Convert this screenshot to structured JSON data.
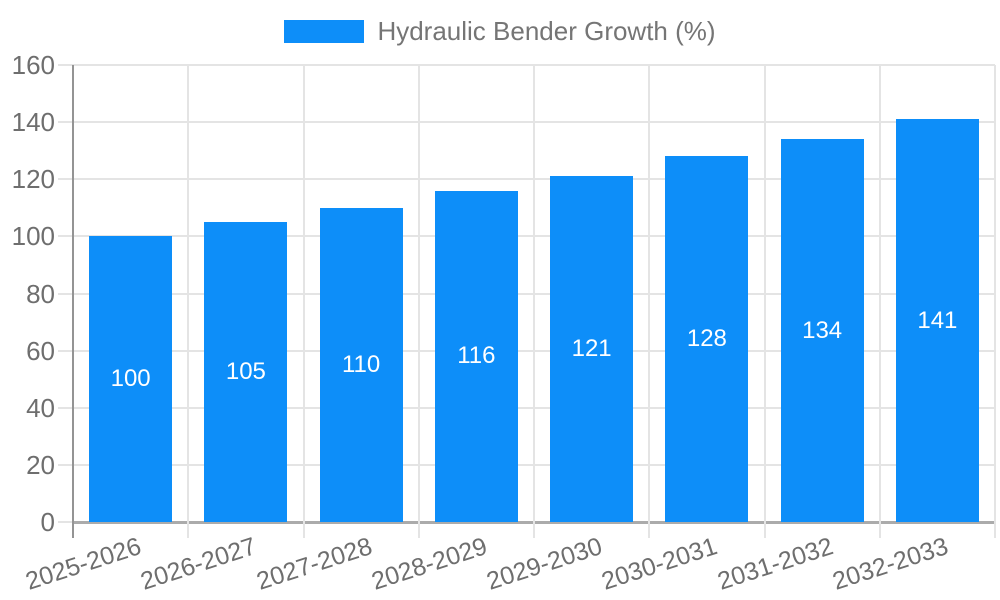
{
  "legend": {
    "label": "Hydraulic Bender Growth (%)"
  },
  "chart_data": {
    "type": "bar",
    "title": "Hydraulic Bender Growth (%)",
    "categories": [
      "2025-2026",
      "2026-2027",
      "2027-2028",
      "2028-2029",
      "2029-2030",
      "2030-2031",
      "2031-2032",
      "2032-2033"
    ],
    "values": [
      100,
      105,
      110,
      116,
      121,
      128,
      134,
      141
    ],
    "bar_labels": [
      "100",
      "105",
      "110",
      "116",
      "121",
      "128",
      "134",
      "141"
    ],
    "yticks": [
      0,
      20,
      40,
      60,
      80,
      100,
      120,
      140,
      160
    ],
    "ylim": [
      0,
      160
    ],
    "xlabel": "",
    "ylabel": "",
    "grid": true,
    "legend_position": "top-center",
    "bar_label_position": "inside-middle",
    "x_label_rotation_deg": -18,
    "colors": {
      "bar": "#0d8ef9",
      "bar_label": "#ffffff",
      "grid": "#e4e4e4",
      "axis_line": "#949494",
      "baseline": "#ababab",
      "tick_label": "#6e6e6e",
      "legend_text": "#757575",
      "background": "#ffffff"
    }
  }
}
